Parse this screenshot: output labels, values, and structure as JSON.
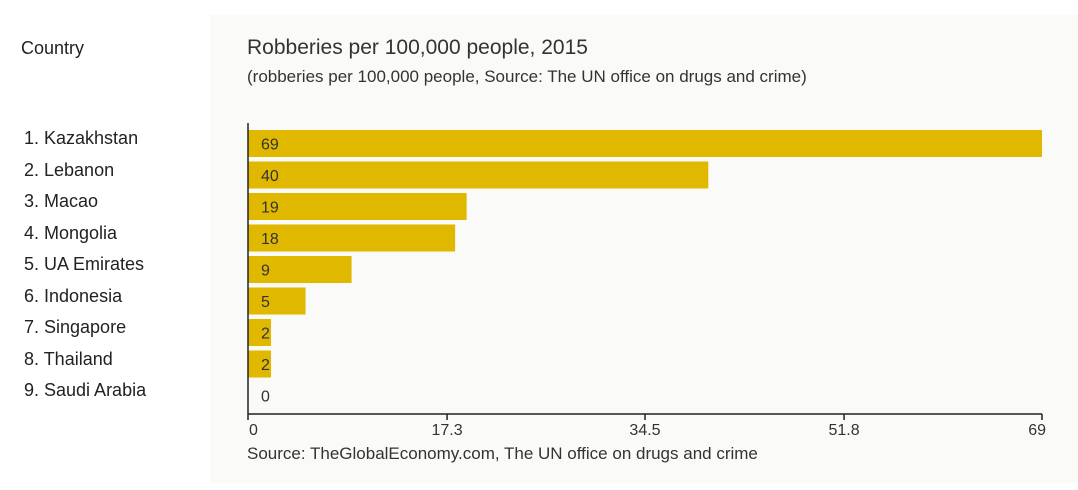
{
  "sidebar": {
    "header": "Country",
    "countries": [
      "1. Kazakhstan",
      "2. Lebanon",
      "3. Macao",
      "4. Mongolia",
      "5. UA Emirates",
      "6. Indonesia",
      "7. Singapore",
      "8. Thailand",
      "9. Saudi Arabia"
    ]
  },
  "colors": {
    "bar": "#e0b800",
    "axis": "#222222",
    "panel_background": "#fafaf8"
  },
  "chart_data": {
    "type": "bar",
    "orientation": "horizontal",
    "title": "Robberies per 100,000 people, 2015",
    "subtitle": "(robberies per 100,000 people, Source: The UN office on drugs and crime)",
    "source": "Source: TheGlobalEconomy.com, The UN office on drugs and crime",
    "categories": [
      "Kazakhstan",
      "Lebanon",
      "Macao",
      "Mongolia",
      "UA Emirates",
      "Indonesia",
      "Singapore",
      "Thailand",
      "Saudi Arabia"
    ],
    "values": [
      69,
      40,
      19,
      18,
      9,
      5,
      2,
      2,
      0
    ],
    "value_labels": [
      "69",
      "40",
      "19",
      "18",
      "9",
      "5",
      "2",
      "2",
      "0"
    ],
    "xlim": [
      0,
      69
    ],
    "x_ticks": [
      0,
      17.3,
      34.5,
      51.8,
      69
    ],
    "x_tick_labels": [
      "0",
      "17.3",
      "34.5",
      "51.8",
      "69"
    ],
    "grid": false,
    "legend": "none"
  }
}
